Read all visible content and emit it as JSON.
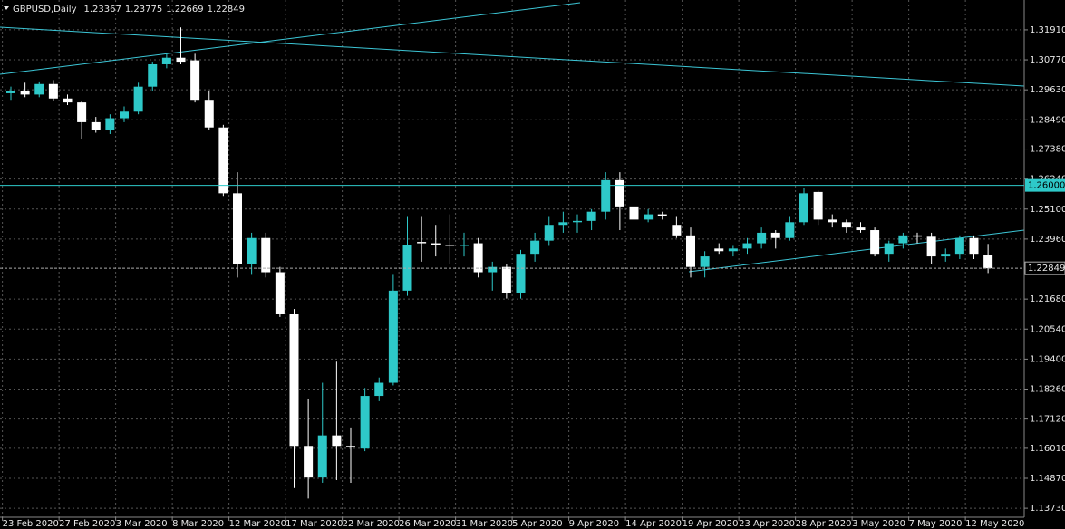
{
  "chart_data": {
    "type": "candlestick",
    "title": "GBPUSD,Daily",
    "categories": [
      null,
      "23 Feb 2020",
      null,
      null,
      null,
      "27 Feb 2020",
      null,
      null,
      null,
      "3 Mar 2020",
      null,
      null,
      null,
      "8 Mar 2020",
      null,
      null,
      null,
      "12 Mar 2020",
      null,
      null,
      null,
      "17 Mar 2020",
      null,
      null,
      null,
      "22 Mar 2020",
      null,
      null,
      null,
      "26 Mar 2020",
      null,
      null,
      null,
      "31 Mar 2020",
      null,
      null,
      null,
      "5 Apr 2020",
      null,
      null,
      null,
      "9 Apr 2020",
      null,
      null,
      null,
      "14 Apr 2020",
      null,
      null,
      null,
      "19 Apr 2020",
      null,
      null,
      null,
      "23 Apr 2020",
      null,
      null,
      null,
      "28 Apr 2020",
      null,
      null,
      null,
      "3 May 2020",
      null,
      null,
      null,
      "7 May 2020",
      null,
      null,
      null,
      "12 May 2020"
    ],
    "series": [
      {
        "name": "GBPUSD",
        "up_color": "#2ec9c9",
        "down_color": "#ffffff",
        "open": [
          1.295,
          1.296,
          1.2945,
          1.2985,
          1.293,
          1.2915,
          1.284,
          1.281,
          1.2855,
          1.288,
          1.2975,
          1.306,
          1.3085,
          1.3075,
          1.2925,
          1.282,
          1.257,
          1.23,
          1.24,
          1.227,
          1.211,
          1.161,
          1.149,
          1.165,
          1.161,
          1.16,
          1.18,
          1.185,
          1.22,
          1.2385,
          1.238,
          1.2375,
          1.237,
          1.238,
          1.227,
          1.229,
          1.219,
          1.234,
          1.239,
          1.245,
          1.246,
          1.2465,
          1.25,
          1.262,
          1.252,
          1.247,
          1.249,
          1.245,
          1.241,
          1.229,
          1.236,
          1.235,
          1.236,
          1.238,
          1.242,
          1.24,
          1.246,
          1.2575,
          1.247,
          1.246,
          1.244,
          1.243,
          1.234,
          1.238,
          1.241,
          1.2405,
          1.233,
          1.234,
          1.24,
          1.23367
        ],
        "high": [
          1.2975,
          1.299,
          1.2995,
          1.3,
          1.2945,
          1.292,
          1.286,
          1.287,
          1.29,
          1.299,
          1.307,
          1.31,
          1.32,
          1.31,
          1.296,
          1.283,
          1.265,
          1.242,
          1.242,
          1.229,
          1.213,
          1.179,
          1.185,
          1.193,
          1.168,
          1.183,
          1.187,
          1.226,
          1.248,
          1.248,
          1.245,
          1.249,
          1.242,
          1.24,
          1.231,
          1.23,
          1.2355,
          1.242,
          1.248,
          1.25,
          1.249,
          1.251,
          1.265,
          1.265,
          1.254,
          1.251,
          1.25,
          1.248,
          1.244,
          1.235,
          1.238,
          1.237,
          1.24,
          1.244,
          1.243,
          1.248,
          1.259,
          1.258,
          1.249,
          1.247,
          1.246,
          1.244,
          1.239,
          1.242,
          1.242,
          1.242,
          1.236,
          1.241,
          1.241,
          1.23775
        ],
        "low": [
          1.2925,
          1.2935,
          1.2935,
          1.292,
          1.2905,
          1.2775,
          1.28,
          1.2795,
          1.284,
          1.287,
          1.296,
          1.3045,
          1.306,
          1.2915,
          1.281,
          1.256,
          1.225,
          1.226,
          1.225,
          1.21,
          1.145,
          1.141,
          1.147,
          1.148,
          1.147,
          1.159,
          1.178,
          1.184,
          1.218,
          1.231,
          1.233,
          1.23,
          1.233,
          1.225,
          1.22,
          1.217,
          1.217,
          1.231,
          1.237,
          1.242,
          1.242,
          1.243,
          1.247,
          1.243,
          1.244,
          1.246,
          1.247,
          1.24,
          1.225,
          1.225,
          1.234,
          1.233,
          1.234,
          1.236,
          1.236,
          1.239,
          1.245,
          1.245,
          1.244,
          1.242,
          1.242,
          1.233,
          1.231,
          1.236,
          1.238,
          1.23,
          1.231,
          1.232,
          1.232,
          1.22669
        ],
        "close": [
          1.296,
          1.2945,
          1.2985,
          1.293,
          1.2915,
          1.284,
          1.281,
          1.2855,
          1.288,
          1.2975,
          1.306,
          1.3085,
          1.307,
          1.2925,
          1.282,
          1.257,
          1.23,
          1.24,
          1.227,
          1.211,
          1.161,
          1.149,
          1.165,
          1.161,
          1.1605,
          1.18,
          1.185,
          1.22,
          1.2375,
          1.238,
          1.2375,
          1.237,
          1.2375,
          1.227,
          1.229,
          1.219,
          1.234,
          1.239,
          1.245,
          1.246,
          1.2465,
          1.25,
          1.262,
          1.252,
          1.247,
          1.249,
          1.2485,
          1.241,
          1.229,
          1.233,
          1.235,
          1.236,
          1.238,
          1.242,
          1.24,
          1.246,
          1.257,
          1.247,
          1.246,
          1.244,
          1.243,
          1.234,
          1.238,
          1.241,
          1.2405,
          1.233,
          1.234,
          1.24,
          1.234,
          1.22849
        ]
      }
    ],
    "ylim": [
      1.1339,
      1.3294
    ],
    "yticks": [
      {
        "value": 1.3191,
        "label": "1.31910"
      },
      {
        "value": 1.3077,
        "label": "1.30770"
      },
      {
        "value": 1.2963,
        "label": "1.29630"
      },
      {
        "value": 1.2849,
        "label": "1.28490"
      },
      {
        "value": 1.2738,
        "label": "1.27380"
      },
      {
        "value": 1.2624,
        "label": "1.26240"
      },
      {
        "value": 1.251,
        "label": "1.25100"
      },
      {
        "value": 1.2396,
        "label": "1.23960"
      },
      {
        "value": 1.2168,
        "label": "1.21680"
      },
      {
        "value": 1.2054,
        "label": "1.20540"
      },
      {
        "value": 1.194,
        "label": "1.19400"
      },
      {
        "value": 1.1826,
        "label": "1.18260"
      },
      {
        "value": 1.1712,
        "label": "1.17120"
      },
      {
        "value": 1.1601,
        "label": "1.16010"
      },
      {
        "value": 1.1487,
        "label": "1.14870"
      },
      {
        "value": 1.1373,
        "label": "1.13730"
      }
    ],
    "hlines": [
      {
        "value": 1.26,
        "label": "1.26000",
        "color": "#2ec9c9"
      }
    ],
    "grid": true
  }
}
